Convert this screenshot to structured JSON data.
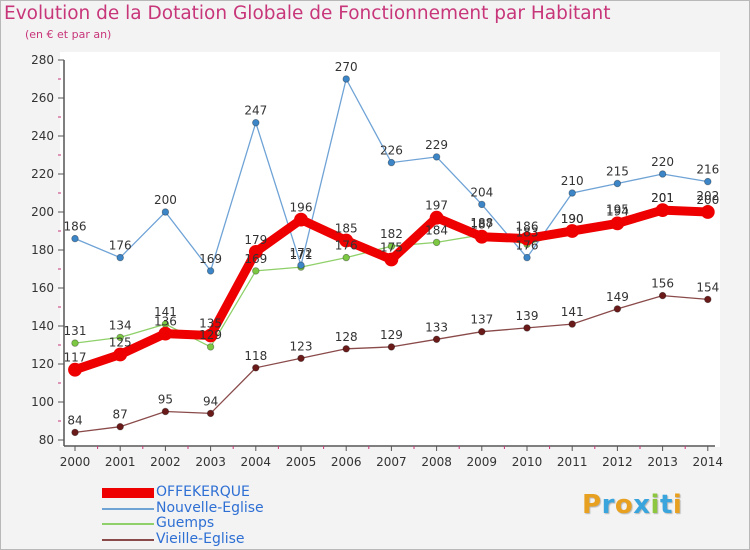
{
  "title": "Evolution de la Dotation Globale de Fonctionnement par Habitant",
  "subtitle": "(en € et par an)",
  "brand": {
    "text": "Proxiti",
    "letter_colors": [
      "#e8a020",
      "#3aa4dd",
      "#e8a020",
      "#3aa4dd",
      "#8dc63f",
      "#3aa4dd",
      "#e8a020"
    ]
  },
  "chart_data": {
    "type": "line",
    "title": "Evolution de la Dotation Globale de Fonctionnement par Habitant",
    "subtitle": "(en € et par an)",
    "x": [
      "2000",
      "2001",
      "2002",
      "2003",
      "2004",
      "2005",
      "2006",
      "2007",
      "2008",
      "2009",
      "2010",
      "2011",
      "2012",
      "2013",
      "2014"
    ],
    "ylim": [
      80,
      280
    ],
    "yticks": [
      80,
      100,
      120,
      140,
      160,
      180,
      200,
      220,
      240,
      260,
      280
    ],
    "grid": false,
    "legend_position": "bottom-left",
    "series": [
      {
        "name": "OFFEKERQUE",
        "color": "#ee0000",
        "marker_color": "#ee0000",
        "emphasis": true,
        "values": [
          117,
          125,
          136,
          135,
          179,
          196,
          185,
          175,
          197,
          187,
          186,
          190,
          194,
          201,
          200
        ],
        "labels": [
          "117",
          "125",
          "136",
          "135",
          "179",
          "196",
          "185",
          "175",
          "197",
          "187",
          "186",
          "190",
          "194",
          "201",
          "200"
        ]
      },
      {
        "name": "Nouvelle-Eglise",
        "color": "#6fa3d6",
        "marker_color": "#3c86c8",
        "values": [
          186,
          176,
          200,
          169,
          247,
          172,
          270,
          226,
          229,
          204,
          176,
          210,
          215,
          220,
          216
        ],
        "labels": [
          "186",
          "176",
          "200",
          "169",
          "247",
          "172",
          "270",
          "226",
          "229",
          "204",
          "176",
          "210",
          "215",
          "220",
          "216"
        ]
      },
      {
        "name": "Guemps",
        "color": "#8fd06a",
        "marker_color": "#7cc843",
        "values": [
          131,
          134,
          141,
          129,
          169,
          171,
          176,
          182,
          184,
          188,
          183,
          190,
          195,
          201,
          202
        ],
        "labels": [
          "131",
          "134",
          "141",
          "129",
          "169",
          "171",
          "176",
          "182",
          "184",
          "188",
          "183",
          "190",
          "195",
          "201",
          "202"
        ]
      },
      {
        "name": "Vieille-Eglise",
        "color": "#8a4a4a",
        "marker_color": "#6b1a1a",
        "values": [
          84,
          87,
          95,
          94,
          118,
          123,
          128,
          129,
          133,
          137,
          139,
          141,
          149,
          156,
          154
        ],
        "labels": [
          "84",
          "87",
          "95",
          "94",
          "118",
          "123",
          "128",
          "129",
          "133",
          "137",
          "139",
          "141",
          "149",
          "156",
          "154"
        ]
      }
    ]
  }
}
